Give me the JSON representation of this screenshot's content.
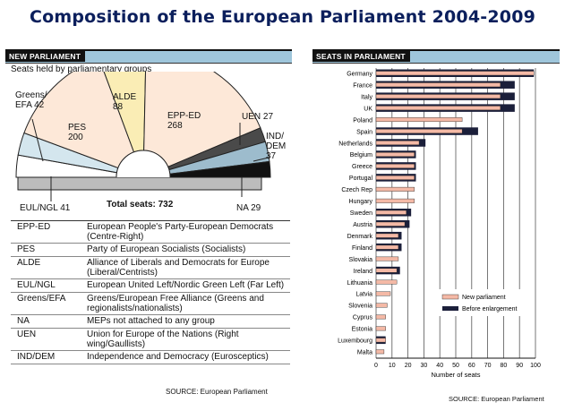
{
  "title": "Composition of the European Parliament 2004-2009",
  "left_panel": {
    "header": "NEW PARLIAMENT",
    "subtitle": "Seats held by parliamentary groups",
    "total": "Total seats: 732",
    "groups": [
      {
        "name": "EUL/NGL",
        "seats": 41,
        "color": "#ffffff"
      },
      {
        "name": "Greens/EFA",
        "seats": 42,
        "color": "#d4e6ee"
      },
      {
        "name": "PES",
        "seats": 200,
        "color": "#fde8d8"
      },
      {
        "name": "ALDE",
        "seats": 88,
        "color": "#faedb5"
      },
      {
        "name": "EPP-ED",
        "seats": 268,
        "color": "#fde8d8"
      },
      {
        "name": "UEN",
        "seats": 27,
        "color": "#4a4a4a"
      },
      {
        "name": "IND/DEM",
        "seats": 37,
        "color": "#9dbccd"
      },
      {
        "name": "NA",
        "seats": 29,
        "color": "#111111"
      }
    ],
    "labels": {
      "greens": [
        "Greens/",
        "EFA 42"
      ],
      "pes": [
        "PES",
        "200"
      ],
      "alde": [
        "ALDE",
        "88"
      ],
      "epp": [
        "EPP-ED",
        "268"
      ],
      "uen": "UEN 27",
      "inddem": [
        "IND/",
        "DEM",
        "37"
      ],
      "eul": "EUL/NGL 41",
      "na": "NA 29"
    },
    "glossary": [
      {
        "abbr": "EPP-ED",
        "desc": "European People's Party-European Democrats (Centre-Right)"
      },
      {
        "abbr": "PES",
        "desc": "Party of European Socialists (Socialists)"
      },
      {
        "abbr": "ALDE",
        "desc": "Alliance of Liberals and Democrats for Europe (Liberal/Centrists)"
      },
      {
        "abbr": "EUL/NGL",
        "desc": "European United Left/Nordic Green Left (Far Left)"
      },
      {
        "abbr": "Greens/EFA",
        "desc": "Greens/European Free Alliance (Greens and regionalists/nationalists)"
      },
      {
        "abbr": "NA",
        "desc": "MEPs not attached to any group"
      },
      {
        "abbr": "UEN",
        "desc": "Union for Europe of the Nations (Right wing/Gaullists)"
      },
      {
        "abbr": "IND/DEM",
        "desc": "Independence and Democracy (Eurosceptics)"
      }
    ],
    "source": "SOURCE: European Parliament"
  },
  "right_panel": {
    "header": "SEATS IN PARLIAMENT",
    "source": "SOURCE: European Parliament"
  },
  "chart_data": {
    "type": "bar",
    "orientation": "horizontal",
    "categories": [
      "Germany",
      "France",
      "Italy",
      "UK",
      "Poland",
      "Spain",
      "Netherlands",
      "Belgium",
      "Greece",
      "Portugal",
      "Czech Rep",
      "Hungary",
      "Sweden",
      "Austria",
      "Denmark",
      "Finland",
      "Slovakia",
      "Ireland",
      "Lithuania",
      "Latvia",
      "Slovenia",
      "Cyprus",
      "Estonia",
      "Luxembourg",
      "Malta"
    ],
    "series": [
      {
        "name": "New parliament",
        "color": "#f4b9a6",
        "values": [
          99,
          78,
          78,
          78,
          54,
          54,
          27,
          24,
          24,
          24,
          24,
          24,
          19,
          18,
          14,
          14,
          14,
          13,
          13,
          9,
          7,
          6,
          6,
          6,
          5
        ]
      },
      {
        "name": "Before enlargement",
        "color": "#1b1f3a",
        "values": [
          99,
          87,
          87,
          87,
          0,
          64,
          31,
          25,
          25,
          25,
          0,
          0,
          22,
          21,
          16,
          16,
          0,
          15,
          0,
          0,
          0,
          0,
          0,
          6,
          0
        ]
      }
    ],
    "xlabel": "Number of seats",
    "xlim": [
      0,
      100
    ],
    "xticks": [
      0,
      10,
      20,
      30,
      40,
      50,
      60,
      70,
      80,
      90,
      100
    ],
    "grid": true,
    "legend": "bottom-right"
  }
}
